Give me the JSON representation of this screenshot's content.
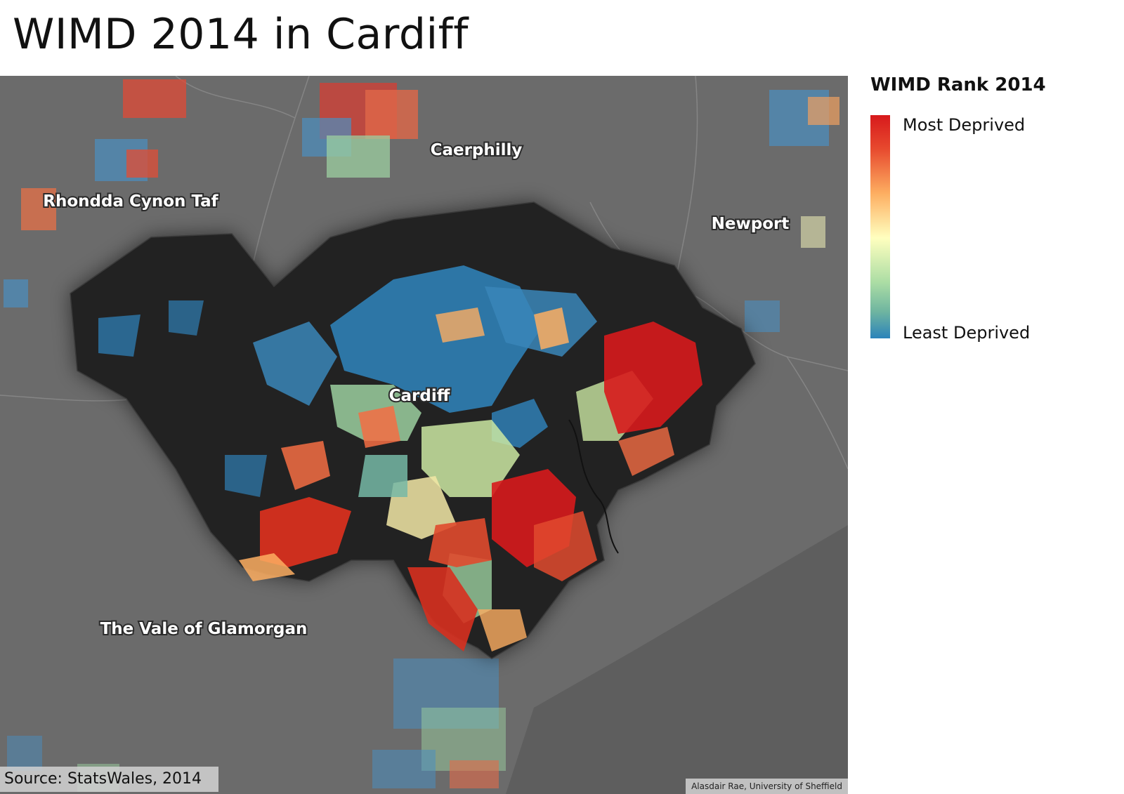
{
  "title": "WIMD 2014 in Cardiff",
  "legend": {
    "title": "WIMD Rank 2014",
    "top_label": "Most Deprived",
    "bottom_label": "Least Deprived",
    "scale_colors": [
      "#d7191c",
      "#fdae61",
      "#ffffbf",
      "#abdda4",
      "#2b83ba"
    ]
  },
  "map": {
    "labels": {
      "caerphilly": "Caerphilly",
      "rhondda": "Rhondda Cynon Taf",
      "newport": "Newport",
      "cardiff": "Cardiff",
      "vale": "The Vale of Glamorgan"
    },
    "colors": {
      "background": "#6b6b6b",
      "cardiff_fill": "#222222",
      "boundary": "#8a8a8a"
    }
  },
  "source": "Source: StatsWales, 2014",
  "credit": "Alasdair Rae, University of Sheffield"
}
